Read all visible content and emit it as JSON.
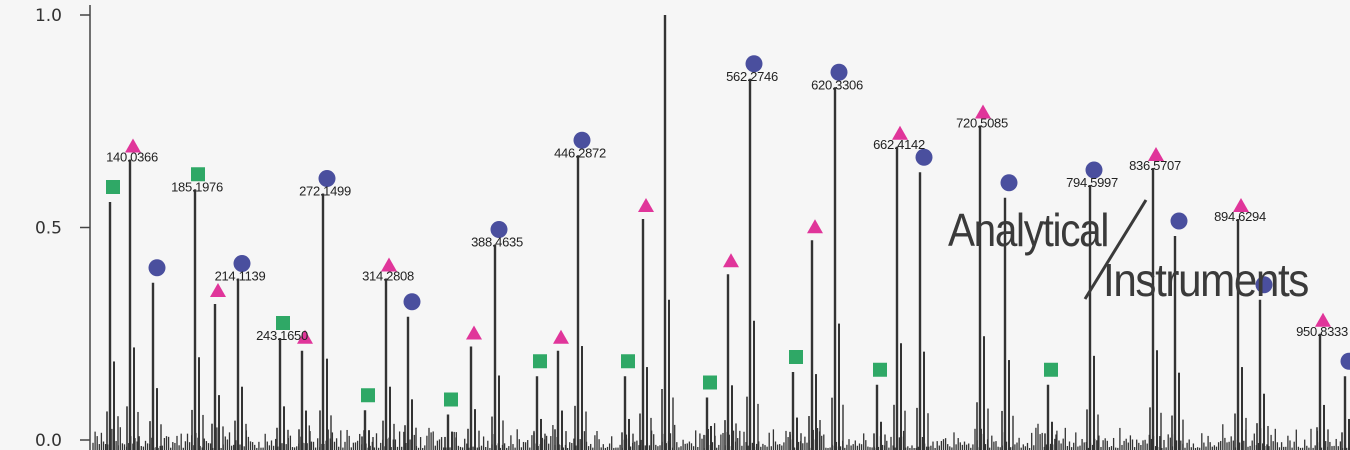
{
  "chart_data": {
    "type": "bar",
    "xlim": [
      0,
      1260
    ],
    "ylim": [
      0,
      1.0
    ],
    "yticks": [
      {
        "value": 0.0,
        "label": "0.0"
      },
      {
        "value": 0.5,
        "label": "0.5"
      },
      {
        "value": 1.0,
        "label": "1.0"
      }
    ],
    "grid": false,
    "colors": {
      "peak": "#333333",
      "axis": "#444444",
      "circle": "#4a4f9e",
      "triangle": "#e0359a",
      "square": "#2fa866"
    },
    "peaks": [
      {
        "x": 20,
        "y": 0.56,
        "marker": "square"
      },
      {
        "x": 40,
        "y": 0.66,
        "marker": "triangle",
        "label": "140.0366"
      },
      {
        "x": 63,
        "y": 0.37,
        "marker": "circle"
      },
      {
        "x": 105,
        "y": 0.59,
        "marker": "square",
        "label": "185.1976"
      },
      {
        "x": 125,
        "y": 0.32,
        "marker": "triangle"
      },
      {
        "x": 148,
        "y": 0.38,
        "marker": "circle",
        "label": "214.1139"
      },
      {
        "x": 190,
        "y": 0.24,
        "marker": "square",
        "label": "243.1650"
      },
      {
        "x": 212,
        "y": 0.21,
        "marker": "triangle"
      },
      {
        "x": 233,
        "y": 0.58,
        "marker": "circle",
        "label": "272.1499"
      },
      {
        "x": 275,
        "y": 0.07,
        "marker": "square"
      },
      {
        "x": 296,
        "y": 0.38,
        "marker": "triangle",
        "label": "314.2808"
      },
      {
        "x": 318,
        "y": 0.29,
        "marker": "circle"
      },
      {
        "x": 358,
        "y": 0.06,
        "marker": "square"
      },
      {
        "x": 381,
        "y": 0.22,
        "marker": "triangle"
      },
      {
        "x": 405,
        "y": 0.46,
        "marker": "circle",
        "label": "388.4635"
      },
      {
        "x": 447,
        "y": 0.15,
        "marker": "square"
      },
      {
        "x": 468,
        "y": 0.21,
        "marker": "triangle"
      },
      {
        "x": 488,
        "y": 0.67,
        "marker": "circle",
        "label": "446.2872"
      },
      {
        "x": 535,
        "y": 0.15,
        "marker": "square"
      },
      {
        "x": 553,
        "y": 0.52,
        "marker": "triangle"
      },
      {
        "x": 575,
        "y": 1.0
      },
      {
        "x": 617,
        "y": 0.1,
        "marker": "square"
      },
      {
        "x": 638,
        "y": 0.39,
        "marker": "triangle"
      },
      {
        "x": 660,
        "y": 0.85,
        "marker": "circle",
        "label": "562.2746"
      },
      {
        "x": 703,
        "y": 0.16,
        "marker": "square"
      },
      {
        "x": 722,
        "y": 0.47,
        "marker": "triangle"
      },
      {
        "x": 745,
        "y": 0.83,
        "marker": "circle",
        "label": "620.3306"
      },
      {
        "x": 787,
        "y": 0.13,
        "marker": "square"
      },
      {
        "x": 807,
        "y": 0.69,
        "marker": "triangle",
        "label": "662.4142"
      },
      {
        "x": 830,
        "y": 0.63,
        "marker": "circle"
      },
      {
        "x": 890,
        "y": 0.74,
        "marker": "triangle",
        "label": "720.5085"
      },
      {
        "x": 915,
        "y": 0.57,
        "marker": "circle"
      },
      {
        "x": 958,
        "y": 0.13,
        "marker": "square"
      },
      {
        "x": 1000,
        "y": 0.6,
        "marker": "circle",
        "label": "794.5997"
      },
      {
        "x": 1063,
        "y": 0.64,
        "marker": "triangle",
        "label": "836.5707"
      },
      {
        "x": 1085,
        "y": 0.48,
        "marker": "circle"
      },
      {
        "x": 1148,
        "y": 0.52,
        "marker": "triangle",
        "label": "894.6294"
      },
      {
        "x": 1170,
        "y": 0.33,
        "marker": "circle"
      },
      {
        "x": 1230,
        "y": 0.25,
        "marker": "triangle",
        "label": "950.8333"
      },
      {
        "x": 1255,
        "y": 0.15,
        "marker": "circle"
      }
    ]
  },
  "logo": {
    "line1": "Analytical",
    "line2": "Instruments"
  }
}
